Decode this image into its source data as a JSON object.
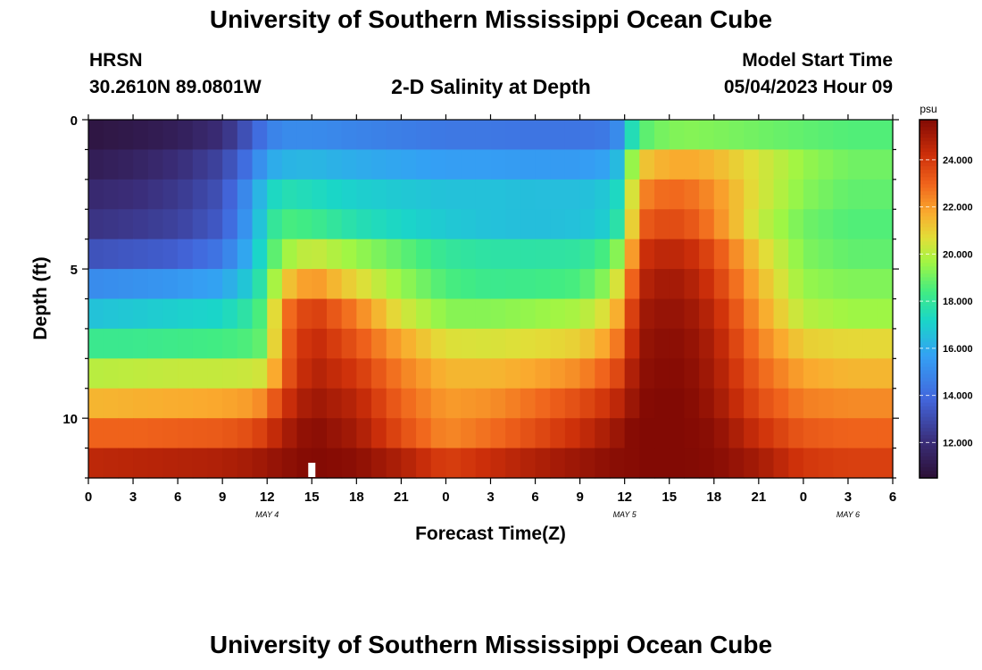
{
  "page": {
    "title": "University of Southern Mississippi Ocean Cube",
    "bottom_title": "University of Southern Mississippi Ocean Cube",
    "station": "HRSN",
    "coords": "30.2610N  89.0801W",
    "chart_title": "2-D Salinity at Depth",
    "model_label": "Model Start Time",
    "model_time": "05/04/2023 Hour 09"
  },
  "chart_data": {
    "type": "heatmap",
    "title": "2-D Salinity at Depth",
    "xlabel": "Forecast Time(Z)",
    "ylabel": "Depth (ft)",
    "x_tick_labels": [
      "0",
      "3",
      "6",
      "9",
      "12",
      "15",
      "18",
      "21",
      "0",
      "3",
      "6",
      "9",
      "12",
      "15",
      "18",
      "21",
      "0",
      "3",
      "6"
    ],
    "x_range_hours": [
      0,
      54
    ],
    "date_labels": [
      {
        "text": "MAY 4",
        "hour": 12
      },
      {
        "text": "MAY 5",
        "hour": 36
      },
      {
        "text": "MAY 6",
        "hour": 51
      }
    ],
    "y_tick_labels": [
      "0",
      "5",
      "10"
    ],
    "y_tick_values": [
      0,
      5,
      10
    ],
    "depth_range_ft": [
      0,
      12
    ],
    "depth_rows_ft": [
      0.5,
      1.5,
      2.5,
      3.5,
      4.5,
      5.5,
      6.5,
      7.5,
      8.5,
      9.5,
      10.5,
      11.5
    ],
    "colorbar": {
      "unit": "psu",
      "min": 10.5,
      "max": 25.7,
      "tick_values": [
        12,
        14,
        16,
        18,
        20,
        22,
        24
      ],
      "tick_labels": [
        "12.000",
        "14.000",
        "16.000",
        "18.000",
        "20.000",
        "22.000",
        "24.000"
      ]
    },
    "marker_hour": 15,
    "series": [
      {
        "name": "salinity depth 0.5 ft",
        "hours": [
          0,
          3,
          6,
          9,
          11,
          12,
          13,
          15,
          18,
          21,
          24,
          27,
          30,
          33,
          35,
          36,
          36.5,
          37,
          38,
          40,
          42,
          45,
          48,
          51,
          54
        ],
        "values": [
          10.8,
          11.0,
          11.3,
          12.0,
          13.5,
          14.6,
          15.0,
          15.0,
          14.8,
          14.6,
          14.4,
          14.4,
          14.3,
          14.3,
          14.5,
          15.5,
          17.5,
          18.5,
          19.0,
          19.3,
          19.2,
          19.0,
          18.8,
          18.6,
          18.6
        ]
      },
      {
        "name": "salinity depth 1.5 ft",
        "hours": [
          0,
          3,
          6,
          9,
          11,
          12,
          13,
          15,
          18,
          21,
          24,
          27,
          30,
          33,
          35,
          36,
          36.5,
          37,
          38,
          40,
          42,
          45,
          48,
          51,
          54
        ],
        "values": [
          11.2,
          11.5,
          12.0,
          12.8,
          14.5,
          15.8,
          16.2,
          16.3,
          16.0,
          15.8,
          15.6,
          15.6,
          15.5,
          15.5,
          15.8,
          17.0,
          19.5,
          21.0,
          21.5,
          21.8,
          21.5,
          20.5,
          19.5,
          19.0,
          19.0
        ]
      },
      {
        "name": "salinity depth 2.5 ft",
        "hours": [
          0,
          3,
          6,
          9,
          11,
          12,
          13,
          15,
          18,
          21,
          24,
          27,
          30,
          33,
          35,
          36,
          36.5,
          37,
          38,
          40,
          42,
          45,
          48,
          51,
          54
        ],
        "values": [
          11.8,
          12.0,
          12.4,
          13.2,
          15.5,
          17.0,
          17.6,
          17.4,
          17.0,
          16.8,
          16.6,
          16.6,
          16.5,
          16.5,
          16.8,
          17.8,
          20.5,
          22.2,
          22.8,
          22.9,
          22.2,
          20.5,
          19.3,
          18.8,
          18.8
        ]
      },
      {
        "name": "salinity depth 3.5 ft",
        "hours": [
          0,
          3,
          6,
          9,
          11,
          12,
          13,
          15,
          18,
          21,
          24,
          27,
          30,
          33,
          35,
          36,
          36.5,
          37,
          38,
          40,
          42,
          45,
          48,
          51,
          54
        ],
        "values": [
          12.2,
          12.4,
          12.7,
          13.5,
          15.8,
          17.5,
          18.5,
          18.3,
          17.6,
          17.2,
          16.8,
          16.6,
          16.5,
          16.6,
          17.0,
          18.5,
          21.0,
          23.0,
          23.5,
          23.5,
          22.5,
          20.2,
          19.0,
          18.6,
          18.6
        ]
      },
      {
        "name": "salinity depth 4.5 ft",
        "hours": [
          0,
          3,
          6,
          9,
          11,
          12,
          13,
          15,
          18,
          21,
          24,
          27,
          30,
          33,
          35,
          36,
          36.5,
          37,
          38,
          40,
          42,
          45,
          48,
          51,
          54
        ],
        "values": [
          13.2,
          13.4,
          13.6,
          14.4,
          16.3,
          18.0,
          19.5,
          20.3,
          19.5,
          18.8,
          18.0,
          17.8,
          17.8,
          17.9,
          18.6,
          20.0,
          22.0,
          24.0,
          24.5,
          24.5,
          23.5,
          21.0,
          19.2,
          18.8,
          18.8
        ]
      },
      {
        "name": "salinity depth 5.5 ft",
        "hours": [
          0,
          3,
          6,
          9,
          11,
          12,
          13,
          15,
          18,
          21,
          24,
          27,
          30,
          33,
          35,
          36,
          36.5,
          37,
          38,
          40,
          42,
          45,
          48,
          51,
          54
        ],
        "values": [
          15.0,
          15.2,
          15.4,
          15.8,
          17.0,
          18.5,
          21.0,
          22.2,
          20.8,
          19.5,
          18.5,
          18.2,
          18.3,
          18.5,
          19.5,
          21.5,
          23.0,
          24.5,
          25.0,
          25.0,
          24.0,
          21.5,
          19.5,
          19.2,
          19.2
        ]
      },
      {
        "name": "salinity depth 6.5 ft",
        "hours": [
          0,
          3,
          6,
          9,
          11,
          12,
          13,
          15,
          18,
          21,
          24,
          27,
          30,
          33,
          35,
          36,
          36.5,
          37,
          38,
          40,
          42,
          45,
          48,
          51,
          54
        ],
        "values": [
          16.6,
          16.8,
          17.0,
          17.2,
          18.0,
          19.0,
          22.5,
          24.0,
          22.5,
          20.5,
          19.3,
          19.3,
          19.5,
          19.8,
          20.8,
          22.5,
          23.8,
          25.0,
          25.3,
          25.3,
          24.5,
          22.0,
          20.0,
          19.6,
          19.6
        ]
      },
      {
        "name": "salinity depth 7.5 ft",
        "hours": [
          0,
          3,
          6,
          9,
          11,
          12,
          13,
          15,
          18,
          21,
          24,
          27,
          30,
          33,
          35,
          36,
          36.5,
          37,
          38,
          40,
          42,
          45,
          48,
          51,
          54
        ],
        "values": [
          18.2,
          18.2,
          18.3,
          18.4,
          18.6,
          19.0,
          22.8,
          24.5,
          23.3,
          21.8,
          20.6,
          20.5,
          20.7,
          21.0,
          22.0,
          23.2,
          24.3,
          25.2,
          25.5,
          25.5,
          24.8,
          22.5,
          21.0,
          20.8,
          20.8
        ]
      },
      {
        "name": "salinity depth 8.5 ft",
        "hours": [
          0,
          3,
          6,
          9,
          11,
          12,
          13,
          15,
          18,
          21,
          24,
          27,
          30,
          33,
          35,
          36,
          36.5,
          37,
          38,
          40,
          42,
          45,
          48,
          51,
          54
        ],
        "values": [
          20.0,
          20.1,
          20.2,
          20.2,
          20.3,
          20.5,
          23.0,
          24.8,
          24.0,
          22.5,
          21.5,
          21.5,
          21.8,
          22.3,
          23.2,
          24.0,
          24.8,
          25.4,
          25.6,
          25.6,
          25.0,
          23.0,
          21.8,
          21.5,
          21.5
        ]
      },
      {
        "name": "salinity depth 9.5 ft",
        "hours": [
          0,
          3,
          6,
          9,
          11,
          12,
          13,
          15,
          18,
          21,
          24,
          27,
          30,
          33,
          35,
          36,
          36.5,
          37,
          38,
          40,
          42,
          45,
          48,
          51,
          54
        ],
        "values": [
          21.5,
          21.6,
          21.7,
          21.8,
          22.0,
          22.5,
          24.0,
          25.2,
          24.6,
          23.0,
          22.0,
          22.2,
          22.8,
          23.5,
          24.2,
          24.8,
          25.2,
          25.6,
          25.7,
          25.7,
          25.2,
          23.5,
          22.5,
          22.3,
          22.3
        ]
      },
      {
        "name": "salinity depth 10.5 ft",
        "hours": [
          0,
          3,
          6,
          9,
          11,
          12,
          13,
          15,
          18,
          21,
          24,
          27,
          30,
          33,
          35,
          36,
          36.5,
          37,
          38,
          40,
          42,
          45,
          48,
          51,
          54
        ],
        "values": [
          23.0,
          23.0,
          23.1,
          23.2,
          23.5,
          24.0,
          24.8,
          25.6,
          25.0,
          23.5,
          22.3,
          22.8,
          23.5,
          24.3,
          25.0,
          25.4,
          25.6,
          25.7,
          25.7,
          25.7,
          25.5,
          24.2,
          23.2,
          23.0,
          23.0
        ]
      },
      {
        "name": "salinity depth 11.5 ft",
        "hours": [
          0,
          3,
          6,
          9,
          11,
          12,
          13,
          15,
          18,
          21,
          24,
          27,
          30,
          33,
          35,
          36,
          36.5,
          37,
          38,
          40,
          42,
          45,
          48,
          51,
          54
        ],
        "values": [
          24.5,
          24.6,
          24.7,
          24.8,
          25.0,
          25.2,
          25.4,
          25.7,
          25.5,
          24.8,
          23.8,
          24.3,
          24.8,
          25.2,
          25.5,
          25.6,
          25.6,
          25.7,
          25.7,
          25.7,
          25.6,
          25.0,
          24.0,
          23.8,
          23.8
        ]
      }
    ]
  }
}
